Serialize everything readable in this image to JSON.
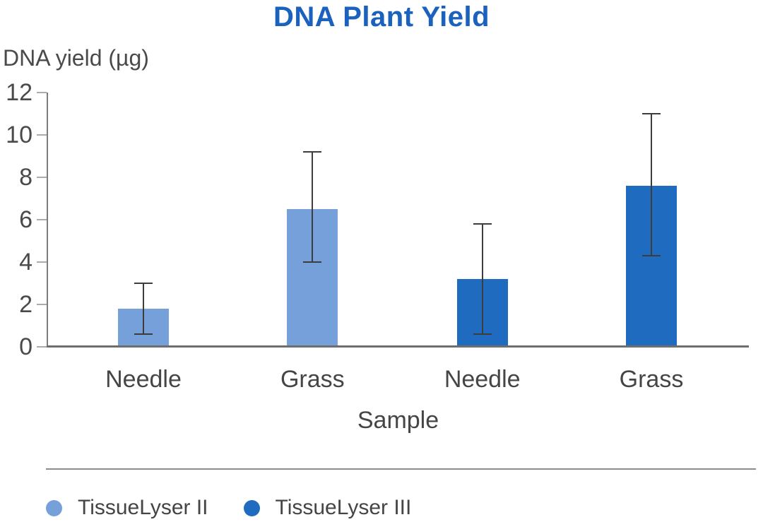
{
  "title": "DNA Plant Yield",
  "y_axis_label": "DNA yield (µg)",
  "x_axis_label": "Sample",
  "colors": {
    "title": "#1A62BE",
    "tissuelyser_ii": "#75A0DA",
    "tissuelyser_iii": "#1F6BC0",
    "axis_line": "#7C7C7C",
    "tick_mark": "#ABABAB",
    "text": "#4A4A4A",
    "error_bar": "#3D3D3D",
    "divider": "#8C8C8C"
  },
  "legend": {
    "items": [
      {
        "label": "TissueLyser II",
        "color": "#75A0DA",
        "swatch": "circle"
      },
      {
        "label": "TissueLyser III",
        "color": "#1F6BC0",
        "swatch": "circle"
      }
    ]
  },
  "chart_data": {
    "type": "bar",
    "title": "DNA Plant Yield",
    "xlabel": "Sample",
    "ylabel": "DNA yield (µg)",
    "ylim": [
      0,
      12
    ],
    "yticks": [
      0,
      2,
      4,
      6,
      8,
      10,
      12
    ],
    "grid": false,
    "legend_position": "bottom",
    "categories": [
      "Needle",
      "Grass",
      "Needle",
      "Grass"
    ],
    "series_names": [
      "TissueLyser II",
      "TissueLyser III"
    ],
    "bars": [
      {
        "category": "Needle",
        "series": "TissueLyser II",
        "value": 1.8,
        "error_low": 0.6,
        "error_high": 3.0,
        "color": "#75A0DA"
      },
      {
        "category": "Grass",
        "series": "TissueLyser II",
        "value": 6.5,
        "error_low": 4.0,
        "error_high": 9.2,
        "color": "#75A0DA"
      },
      {
        "category": "Needle",
        "series": "TissueLyser III",
        "value": 3.2,
        "error_low": 0.6,
        "error_high": 5.8,
        "color": "#1F6BC0"
      },
      {
        "category": "Grass",
        "series": "TissueLyser III",
        "value": 7.6,
        "error_low": 4.3,
        "error_high": 11.0,
        "color": "#1F6BC0"
      }
    ]
  }
}
